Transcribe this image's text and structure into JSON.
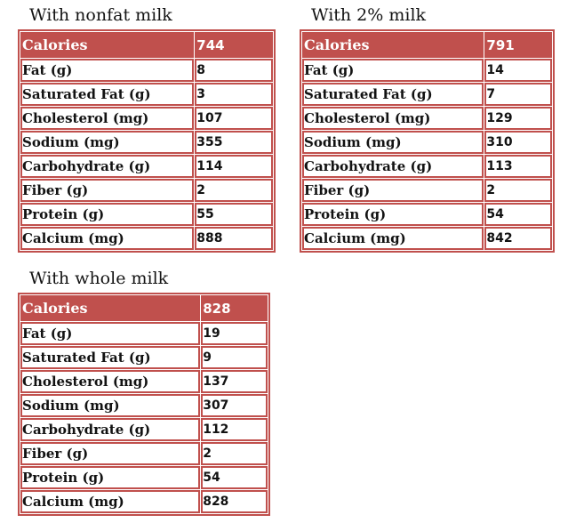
{
  "colors": {
    "table_red": "#C0504D",
    "header_text": "#FFFFFF",
    "body_text": "#121212",
    "page_background": "#FFFFFF"
  },
  "row_labels": [
    "Calories",
    "Fat (g)",
    "Saturated Fat (g)",
    "Cholesterol (mg)",
    "Sodium (mg)",
    "Carbohydrate (g)",
    "Fiber (g)",
    "Protein (g)",
    "Calcium (mg)"
  ],
  "tables": [
    {
      "title": "With nonfat milk",
      "values": [
        "744",
        "8",
        "3",
        "107",
        "355",
        "114",
        "2",
        "55",
        "888"
      ]
    },
    {
      "title": "With 2% milk",
      "values": [
        "791",
        "14",
        "7",
        "129",
        "310",
        "113",
        "2",
        "54",
        "842"
      ]
    },
    {
      "title": "With whole milk",
      "values": [
        "828",
        "19",
        "9",
        "137",
        "307",
        "112",
        "2",
        "54",
        "828"
      ]
    }
  ]
}
